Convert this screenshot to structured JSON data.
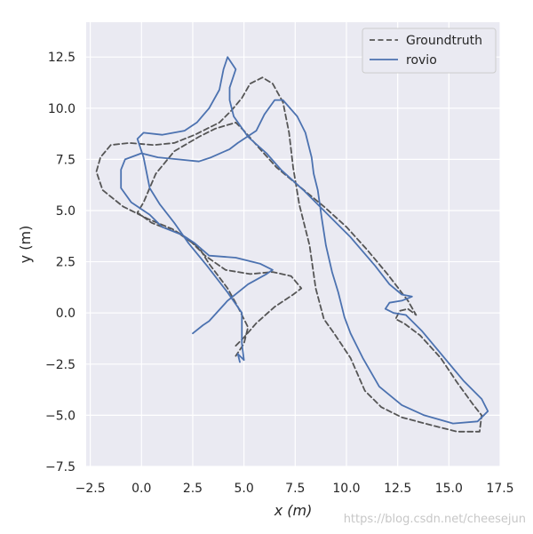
{
  "chart_data": {
    "type": "line",
    "xlabel": "x (m)",
    "ylabel": "y (m)",
    "xlim": [
      -2.7,
      17.5
    ],
    "ylim": [
      -7.5,
      14.2
    ],
    "x_ticks": [
      "−2.5",
      "0.0",
      "2.5",
      "5.0",
      "7.5",
      "10.0",
      "12.5",
      "15.0",
      "17.5"
    ],
    "x_tick_values": [
      -2.5,
      0,
      2.5,
      5,
      7.5,
      10,
      12.5,
      15,
      17.5
    ],
    "y_ticks": [
      "−7.5",
      "−5.0",
      "−2.5",
      "0.0",
      "2.5",
      "5.0",
      "7.5",
      "10.0",
      "12.5"
    ],
    "y_tick_values": [
      -7.5,
      -5,
      -2.5,
      0,
      2.5,
      5,
      7.5,
      10,
      12.5
    ],
    "grid": true,
    "legend_position": "top-right",
    "series": [
      {
        "name": "Groundtruth",
        "color": "#555555",
        "style": "dashed",
        "points": [
          [
            4.6,
            -1.6
          ],
          [
            5.0,
            -1.2
          ],
          [
            5.6,
            -0.5
          ],
          [
            6.5,
            0.3
          ],
          [
            7.4,
            0.9
          ],
          [
            7.8,
            1.2
          ],
          [
            7.3,
            1.8
          ],
          [
            6.4,
            2.0
          ],
          [
            5.3,
            1.9
          ],
          [
            4.1,
            2.1
          ],
          [
            3.1,
            2.8
          ],
          [
            2.3,
            3.6
          ],
          [
            1.5,
            4.1
          ],
          [
            0.3,
            4.6
          ],
          [
            -0.9,
            5.2
          ],
          [
            -1.9,
            6.0
          ],
          [
            -2.2,
            6.9
          ],
          [
            -2.0,
            7.6
          ],
          [
            -1.5,
            8.2
          ],
          [
            -0.6,
            8.3
          ],
          [
            0.6,
            8.2
          ],
          [
            1.6,
            8.3
          ],
          [
            2.6,
            8.7
          ],
          [
            3.8,
            9.3
          ],
          [
            4.4,
            9.9
          ],
          [
            4.9,
            10.5
          ],
          [
            5.3,
            11.2
          ],
          [
            5.9,
            11.5
          ],
          [
            6.4,
            11.2
          ],
          [
            6.9,
            10.3
          ],
          [
            7.2,
            8.8
          ],
          [
            7.4,
            7.1
          ],
          [
            7.7,
            5.3
          ],
          [
            8.2,
            3.3
          ],
          [
            8.5,
            1.2
          ],
          [
            8.9,
            -0.3
          ],
          [
            9.4,
            -1.0
          ],
          [
            10.2,
            -2.2
          ],
          [
            10.9,
            -3.8
          ],
          [
            11.7,
            -4.6
          ],
          [
            12.7,
            -5.1
          ],
          [
            14.2,
            -5.5
          ],
          [
            15.4,
            -5.8
          ],
          [
            16.5,
            -5.8
          ],
          [
            16.6,
            -5.0
          ],
          [
            16.2,
            -4.5
          ],
          [
            15.4,
            -3.4
          ],
          [
            14.6,
            -2.2
          ],
          [
            13.6,
            -1.1
          ],
          [
            12.8,
            -0.5
          ],
          [
            12.4,
            -0.3
          ],
          [
            12.6,
            0.1
          ],
          [
            13.0,
            0.2
          ],
          [
            13.4,
            -0.1
          ],
          [
            13.0,
            0.6
          ],
          [
            12.0,
            1.9
          ],
          [
            11.0,
            3.1
          ],
          [
            10.0,
            4.2
          ],
          [
            8.9,
            5.2
          ],
          [
            7.8,
            6.1
          ],
          [
            6.6,
            7.1
          ],
          [
            5.7,
            8.1
          ],
          [
            5.0,
            8.9
          ],
          [
            4.6,
            9.3
          ],
          [
            3.6,
            9.0
          ],
          [
            2.8,
            8.6
          ],
          [
            1.6,
            7.9
          ],
          [
            0.7,
            6.8
          ],
          [
            0.1,
            5.4
          ],
          [
            -0.2,
            4.9
          ],
          [
            0.5,
            4.4
          ],
          [
            1.8,
            3.9
          ],
          [
            2.8,
            3.2
          ],
          [
            3.3,
            2.4
          ],
          [
            4.2,
            1.2
          ],
          [
            4.7,
            0.3
          ],
          [
            5.2,
            -0.7
          ],
          [
            5.0,
            -1.5
          ],
          [
            4.6,
            -2.1
          ]
        ]
      },
      {
        "name": "rovio",
        "color": "#4c72b0",
        "style": "solid",
        "points": [
          [
            2.5,
            -1.0
          ],
          [
            3.0,
            -0.6
          ],
          [
            3.3,
            -0.4
          ],
          [
            4.2,
            0.6
          ],
          [
            5.2,
            1.4
          ],
          [
            6.1,
            1.9
          ],
          [
            6.4,
            2.1
          ],
          [
            5.8,
            2.4
          ],
          [
            4.6,
            2.7
          ],
          [
            3.3,
            2.8
          ],
          [
            2.6,
            3.4
          ],
          [
            2.0,
            3.8
          ],
          [
            1.0,
            4.2
          ],
          [
            0.4,
            4.8
          ],
          [
            -0.5,
            5.4
          ],
          [
            -1.0,
            6.1
          ],
          [
            -1.0,
            7.0
          ],
          [
            -0.8,
            7.5
          ],
          [
            0.0,
            7.8
          ],
          [
            0.8,
            7.6
          ],
          [
            1.8,
            7.5
          ],
          [
            2.8,
            7.4
          ],
          [
            3.4,
            7.6
          ],
          [
            4.3,
            8.0
          ],
          [
            4.7,
            8.3
          ],
          [
            5.6,
            8.9
          ],
          [
            6.0,
            9.7
          ],
          [
            6.5,
            10.4
          ],
          [
            6.9,
            10.4
          ],
          [
            7.6,
            9.6
          ],
          [
            8.0,
            8.8
          ],
          [
            8.3,
            7.6
          ],
          [
            8.4,
            6.8
          ],
          [
            8.6,
            6.0
          ],
          [
            8.8,
            4.6
          ],
          [
            9.0,
            3.3
          ],
          [
            9.3,
            2.0
          ],
          [
            9.6,
            1.0
          ],
          [
            9.9,
            -0.2
          ],
          [
            10.2,
            -1.0
          ],
          [
            10.8,
            -2.2
          ],
          [
            11.6,
            -3.6
          ],
          [
            12.7,
            -4.5
          ],
          [
            13.8,
            -5.0
          ],
          [
            15.2,
            -5.4
          ],
          [
            16.4,
            -5.3
          ],
          [
            16.9,
            -4.8
          ],
          [
            16.6,
            -4.2
          ],
          [
            15.7,
            -3.3
          ],
          [
            14.7,
            -2.1
          ],
          [
            13.7,
            -0.9
          ],
          [
            12.9,
            -0.1
          ],
          [
            12.3,
            0.0
          ],
          [
            11.9,
            0.2
          ],
          [
            12.1,
            0.5
          ],
          [
            12.7,
            0.6
          ],
          [
            13.2,
            0.8
          ],
          [
            12.7,
            0.9
          ],
          [
            12.1,
            1.4
          ],
          [
            11.4,
            2.3
          ],
          [
            10.2,
            3.7
          ],
          [
            9.2,
            4.7
          ],
          [
            7.9,
            6.0
          ],
          [
            6.8,
            7.0
          ],
          [
            6.1,
            7.8
          ],
          [
            5.2,
            8.6
          ],
          [
            4.5,
            9.6
          ],
          [
            4.3,
            10.4
          ],
          [
            4.3,
            11.0
          ],
          [
            4.6,
            11.9
          ],
          [
            4.2,
            12.5
          ],
          [
            4.0,
            11.9
          ],
          [
            3.8,
            10.9
          ],
          [
            3.3,
            10.0
          ],
          [
            2.7,
            9.3
          ],
          [
            2.1,
            8.9
          ],
          [
            1.0,
            8.7
          ],
          [
            0.1,
            8.8
          ],
          [
            -0.2,
            8.5
          ],
          [
            0.1,
            7.6
          ],
          [
            0.4,
            6.1
          ],
          [
            0.9,
            5.3
          ],
          [
            1.6,
            4.4
          ],
          [
            2.3,
            3.4
          ],
          [
            3.2,
            2.3
          ],
          [
            4.2,
            1.0
          ],
          [
            4.9,
            0.0
          ],
          [
            4.9,
            -0.8
          ],
          [
            4.9,
            -1.5
          ],
          [
            5.0,
            -2.3
          ],
          [
            4.7,
            -2.0
          ],
          [
            4.8,
            -2.4
          ]
        ]
      }
    ]
  },
  "watermark": "https://blog.csdn.net/cheesejun"
}
